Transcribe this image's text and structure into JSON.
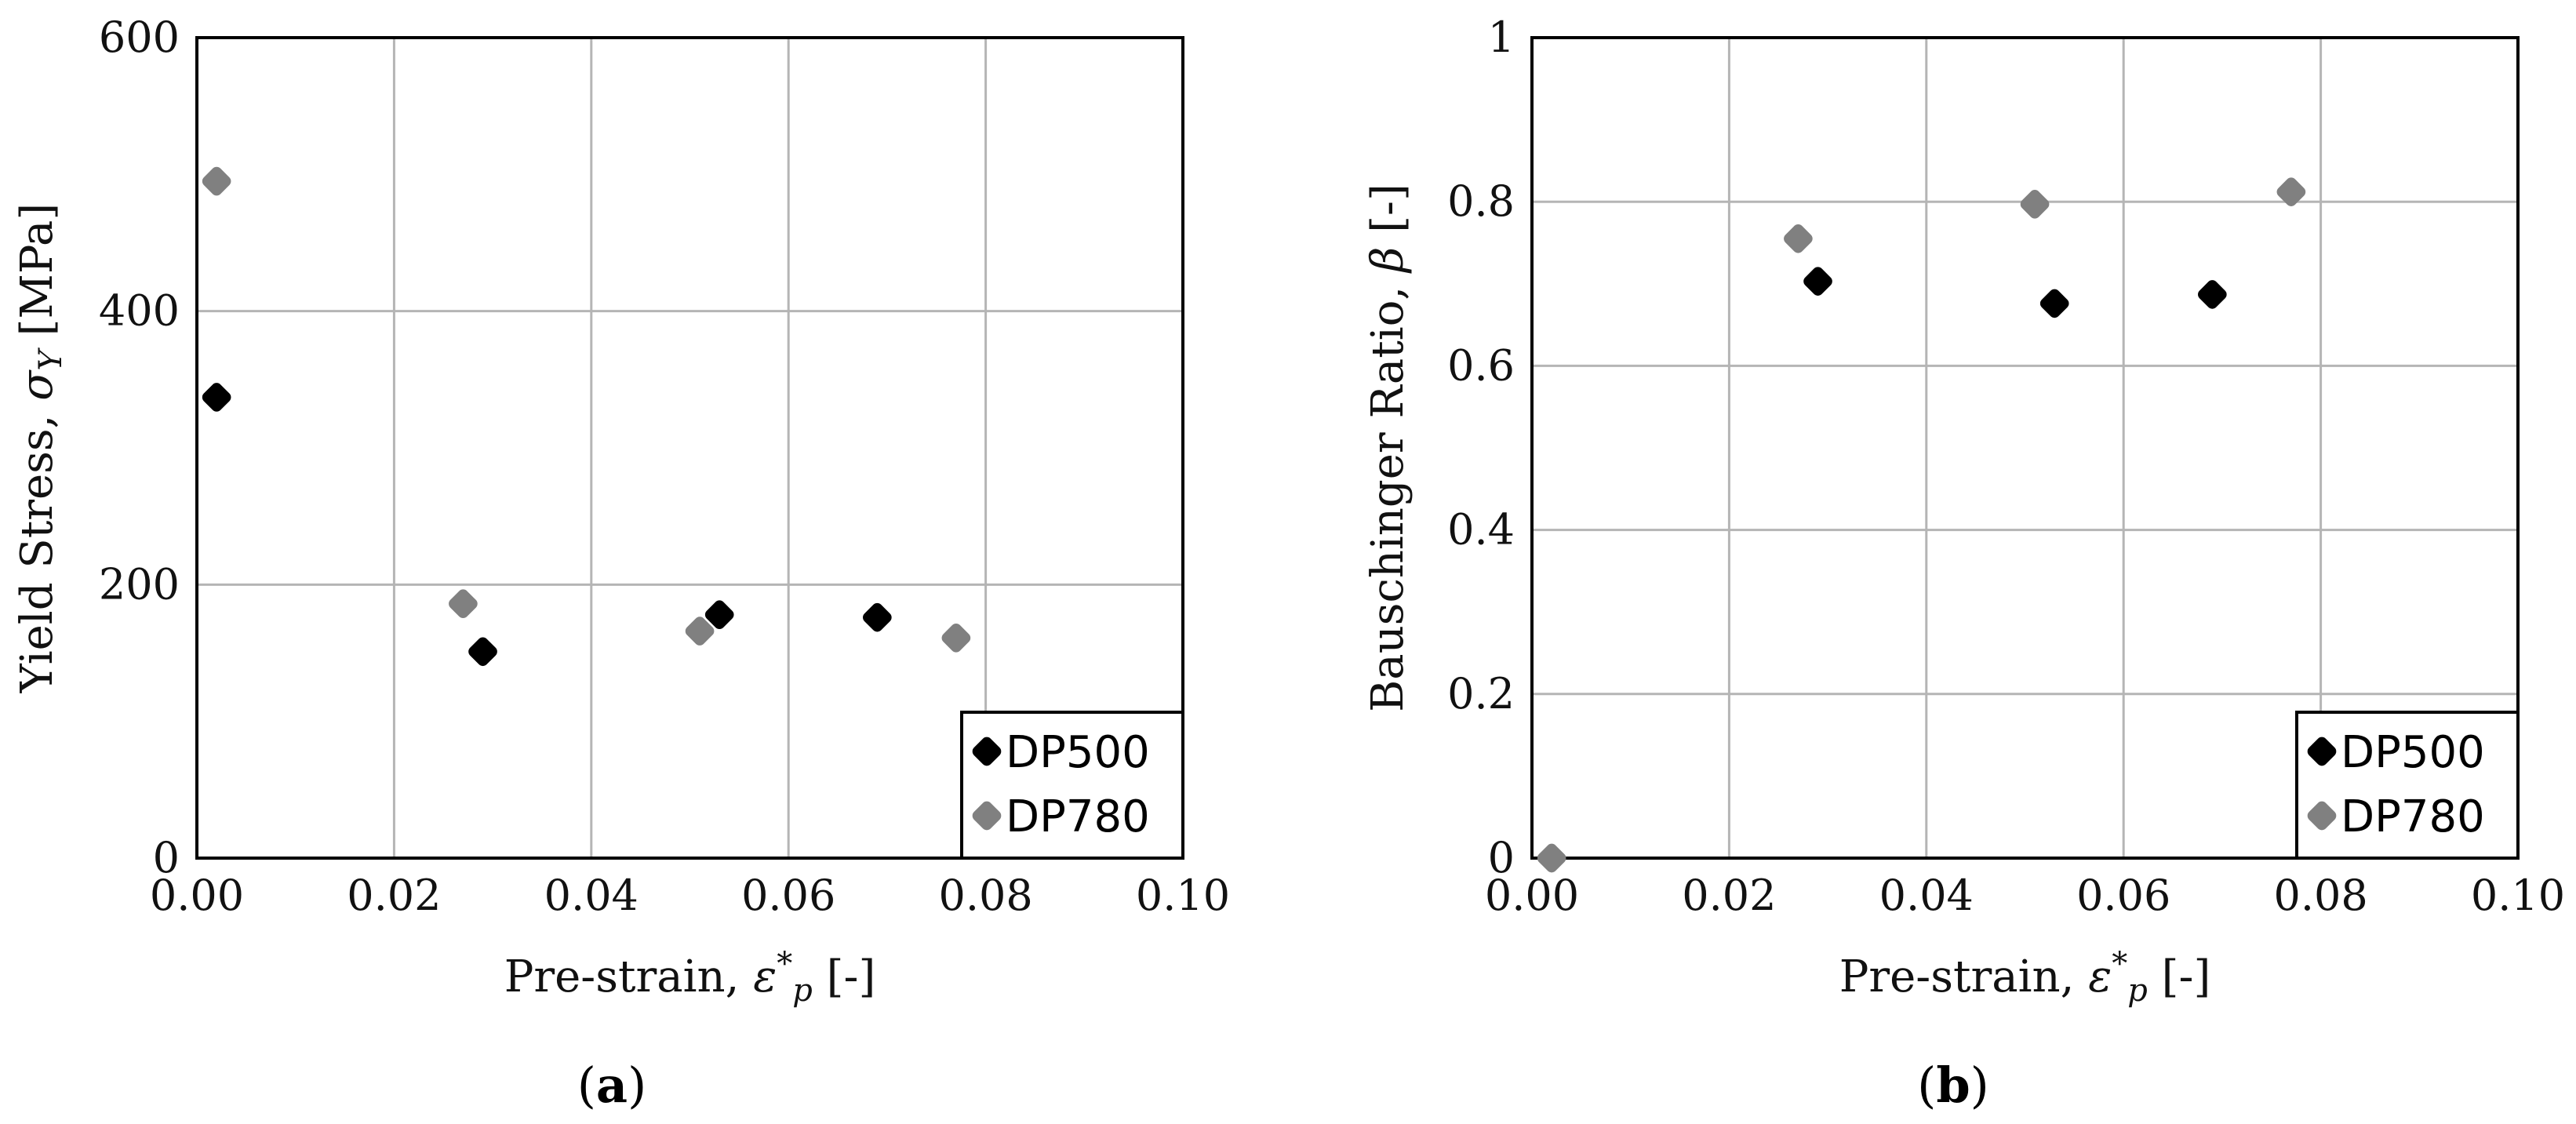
{
  "chart_data": [
    {
      "type": "scatter",
      "panel": "a",
      "caption_letter": "a",
      "xlabel": "Pre-strain, ε*p [-]",
      "ylabel": "Yield Stress, σY [MPa]",
      "xlim": [
        0,
        0.1
      ],
      "ylim": [
        0,
        600
      ],
      "xticks": [
        "0.00",
        "0.02",
        "0.04",
        "0.06",
        "0.08",
        "0.10"
      ],
      "yticks": [
        "0",
        "200",
        "400",
        "600"
      ],
      "grid": true,
      "legend_position": "bottom-right",
      "series": [
        {
          "name": "DP500",
          "color": "#000000",
          "x": [
            0.002,
            0.029,
            0.053,
            0.069
          ],
          "y": [
            337,
            151,
            178,
            176
          ]
        },
        {
          "name": "DP780",
          "color": "#808080",
          "x": [
            0.002,
            0.027,
            0.051,
            0.077
          ],
          "y": [
            495,
            186,
            166,
            161
          ]
        }
      ]
    },
    {
      "type": "scatter",
      "panel": "b",
      "caption_letter": "b",
      "xlabel": "Pre-strain, ε*p [-]",
      "ylabel": "Bauschinger Ratio, β [-]",
      "xlim": [
        0,
        0.1
      ],
      "ylim": [
        0,
        1
      ],
      "xticks": [
        "0.00",
        "0.02",
        "0.04",
        "0.06",
        "0.08",
        "0.10"
      ],
      "yticks": [
        "0",
        "0.2",
        "0.4",
        "0.6",
        "0.8",
        "1"
      ],
      "grid": true,
      "legend_position": "bottom-right",
      "series": [
        {
          "name": "DP500",
          "color": "#000000",
          "x": [
            0.029,
            0.053,
            0.069
          ],
          "y": [
            0.703,
            0.676,
            0.687
          ]
        },
        {
          "name": "DP780",
          "color": "#808080",
          "x": [
            0.002,
            0.027,
            0.051,
            0.077
          ],
          "y": [
            0.0,
            0.755,
            0.797,
            0.812
          ]
        }
      ]
    }
  ]
}
